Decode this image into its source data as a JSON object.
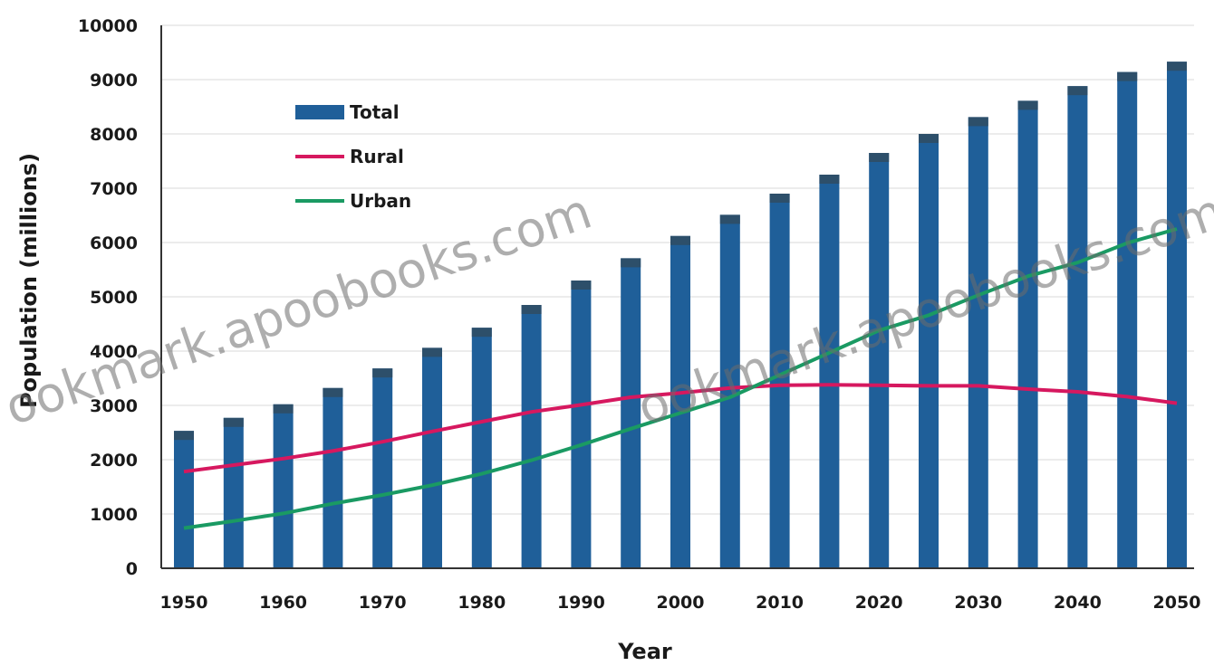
{
  "chart_data": {
    "type": "bar",
    "xlabel": "Year",
    "ylabel": "Population (millions)",
    "ylim": [
      0,
      10000
    ],
    "yticks": [
      "0",
      "1000",
      "2000",
      "3000",
      "4000",
      "5000",
      "6000",
      "7000",
      "8000",
      "9000",
      "10000"
    ],
    "xticks": [
      "1950",
      "1960",
      "1970",
      "1980",
      "1990",
      "2000",
      "2010",
      "2020",
      "2030",
      "2040",
      "2050"
    ],
    "categories": [
      1950,
      1955,
      1960,
      1965,
      1970,
      1975,
      1980,
      1985,
      1990,
      1995,
      2000,
      2005,
      2010,
      2015,
      2020,
      2025,
      2030,
      2035,
      2040,
      2045,
      2050
    ],
    "legend_position": "top-left",
    "grid": "horizontal",
    "series": [
      {
        "name": "Total",
        "kind": "bar",
        "color": "#1f5f99",
        "values": [
          2530,
          2770,
          3020,
          3320,
          3680,
          4060,
          4430,
          4850,
          5300,
          5710,
          6120,
          6510,
          6900,
          7250,
          7650,
          8000,
          8310,
          8610,
          8880,
          9140,
          9330
        ]
      },
      {
        "name": "Rural",
        "kind": "line",
        "color": "#d6185f",
        "values": [
          1780,
          1900,
          2020,
          2160,
          2330,
          2520,
          2700,
          2880,
          3010,
          3150,
          3230,
          3320,
          3370,
          3380,
          3370,
          3360,
          3360,
          3300,
          3250,
          3160,
          3040
        ]
      },
      {
        "name": "Urban",
        "kind": "line",
        "color": "#1a9a63",
        "values": [
          740,
          870,
          1010,
          1190,
          1350,
          1530,
          1740,
          1990,
          2270,
          2570,
          2860,
          3150,
          3560,
          3970,
          4380,
          4660,
          5030,
          5380,
          5630,
          5990,
          6250
        ]
      }
    ],
    "watermark": [
      "ookmark.apoobooks.com",
      "ookmark.apoobooks.com"
    ]
  }
}
